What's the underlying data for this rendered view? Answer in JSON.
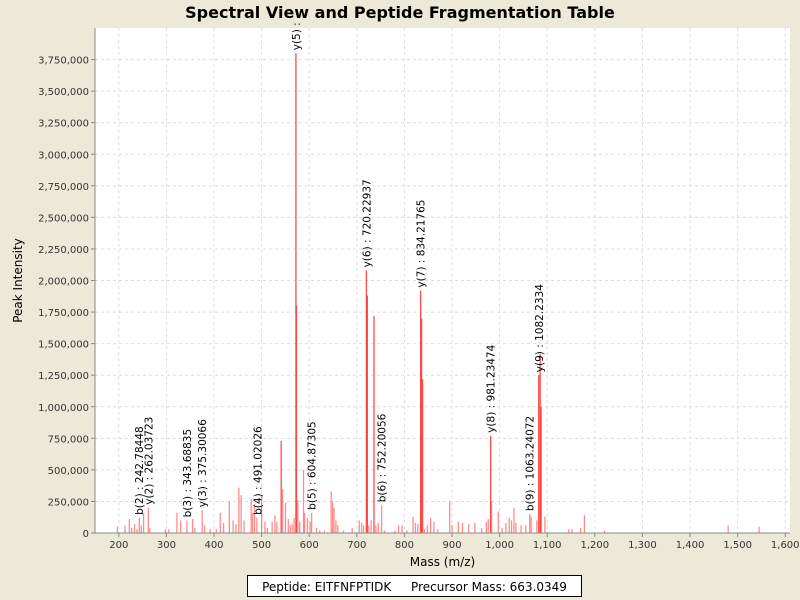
{
  "chart_data": {
    "type": "bar",
    "title": "Spectral View and Peptide Fragmentation Table",
    "xlabel": "Mass (m/z)",
    "ylabel": "Peak Intensity",
    "xlim": [
      150,
      1610
    ],
    "ylim": [
      0,
      4000000
    ],
    "grid": true,
    "bar_color": "#ff4040",
    "x_ticks": [
      200,
      300,
      400,
      500,
      600,
      700,
      800,
      900,
      1000,
      1100,
      1200,
      1300,
      1400,
      1500,
      1600
    ],
    "x_tick_labels": [
      "200",
      "300",
      "400",
      "500",
      "600",
      "700",
      "800",
      "900",
      "1,000",
      "1,100",
      "1,200",
      "1,300",
      "1,400",
      "1,500",
      "1,600"
    ],
    "y_ticks": [
      0,
      250000,
      500000,
      750000,
      1000000,
      1250000,
      1500000,
      1750000,
      2000000,
      2250000,
      2500000,
      2750000,
      3000000,
      3250000,
      3500000,
      3750000
    ],
    "y_tick_labels": [
      "0",
      "250,000",
      "500,000",
      "750,000",
      "1,000,000",
      "1,250,000",
      "1,500,000",
      "1,750,000",
      "2,000,000",
      "2,250,000",
      "2,500,000",
      "2,750,000",
      "3,000,000",
      "3,250,000",
      "3,500,000",
      "3,750,000"
    ],
    "peaks": [
      [
        197,
        50000
      ],
      [
        213,
        60000
      ],
      [
        222,
        110000
      ],
      [
        227,
        40000
      ],
      [
        233,
        70000
      ],
      [
        238,
        30000
      ],
      [
        243,
        120000
      ],
      [
        247,
        60000
      ],
      [
        252,
        160000
      ],
      [
        262,
        200000
      ],
      [
        265,
        40000
      ],
      [
        298,
        30000
      ],
      [
        305,
        30000
      ],
      [
        322,
        160000
      ],
      [
        330,
        100000
      ],
      [
        343,
        100000
      ],
      [
        355,
        110000
      ],
      [
        360,
        40000
      ],
      [
        375,
        180000
      ],
      [
        380,
        60000
      ],
      [
        392,
        30000
      ],
      [
        405,
        30000
      ],
      [
        413,
        160000
      ],
      [
        420,
        80000
      ],
      [
        432,
        250000
      ],
      [
        440,
        100000
      ],
      [
        446,
        70000
      ],
      [
        452,
        360000
      ],
      [
        457,
        300000
      ],
      [
        463,
        100000
      ],
      [
        478,
        270000
      ],
      [
        481,
        160000
      ],
      [
        485,
        230000
      ],
      [
        490,
        120000
      ],
      [
        500,
        300000
      ],
      [
        507,
        90000
      ],
      [
        512,
        40000
      ],
      [
        522,
        90000
      ],
      [
        528,
        140000
      ],
      [
        532,
        90000
      ],
      [
        541,
        730000
      ],
      [
        544,
        350000
      ],
      [
        550,
        240000
      ],
      [
        556,
        110000
      ],
      [
        560,
        60000
      ],
      [
        564,
        70000
      ],
      [
        568,
        120000
      ],
      [
        572,
        3800000
      ],
      [
        573,
        1800000
      ],
      [
        576,
        260000
      ],
      [
        580,
        90000
      ],
      [
        588,
        500000
      ],
      [
        590,
        160000
      ],
      [
        596,
        120000
      ],
      [
        602,
        90000
      ],
      [
        605,
        160000
      ],
      [
        615,
        40000
      ],
      [
        622,
        20000
      ],
      [
        632,
        20000
      ],
      [
        646,
        330000
      ],
      [
        649,
        250000
      ],
      [
        652,
        200000
      ],
      [
        656,
        100000
      ],
      [
        660,
        60000
      ],
      [
        672,
        20000
      ],
      [
        690,
        40000
      ],
      [
        705,
        100000
      ],
      [
        710,
        80000
      ],
      [
        714,
        60000
      ],
      [
        720,
        2080000
      ],
      [
        722,
        1880000
      ],
      [
        725,
        60000
      ],
      [
        730,
        100000
      ],
      [
        736,
        1720000
      ],
      [
        740,
        60000
      ],
      [
        745,
        80000
      ],
      [
        752,
        220000
      ],
      [
        758,
        20000
      ],
      [
        780,
        20000
      ],
      [
        788,
        60000
      ],
      [
        795,
        60000
      ],
      [
        805,
        20000
      ],
      [
        818,
        130000
      ],
      [
        823,
        80000
      ],
      [
        828,
        70000
      ],
      [
        834,
        1920000
      ],
      [
        836,
        1700000
      ],
      [
        838,
        1220000
      ],
      [
        842,
        30000
      ],
      [
        848,
        60000
      ],
      [
        855,
        120000
      ],
      [
        862,
        90000
      ],
      [
        870,
        30000
      ],
      [
        895,
        250000
      ],
      [
        900,
        60000
      ],
      [
        913,
        90000
      ],
      [
        922,
        80000
      ],
      [
        935,
        70000
      ],
      [
        948,
        80000
      ],
      [
        962,
        40000
      ],
      [
        972,
        90000
      ],
      [
        976,
        110000
      ],
      [
        981,
        770000
      ],
      [
        983,
        250000
      ],
      [
        997,
        170000
      ],
      [
        1005,
        40000
      ],
      [
        1013,
        80000
      ],
      [
        1020,
        120000
      ],
      [
        1025,
        100000
      ],
      [
        1030,
        200000
      ],
      [
        1034,
        80000
      ],
      [
        1045,
        60000
      ],
      [
        1055,
        60000
      ],
      [
        1063,
        150000
      ],
      [
        1066,
        130000
      ],
      [
        1078,
        100000
      ],
      [
        1082,
        1250000
      ],
      [
        1085,
        1420000
      ],
      [
        1087,
        1000000
      ],
      [
        1095,
        130000
      ],
      [
        1145,
        30000
      ],
      [
        1152,
        30000
      ],
      [
        1170,
        40000
      ],
      [
        1178,
        140000
      ],
      [
        1220,
        20000
      ],
      [
        1480,
        60000
      ],
      [
        1545,
        50000
      ]
    ],
    "annotations": [
      {
        "label": "b(2) : 242.78448",
        "mz": 242.78,
        "intensity": 120000
      },
      {
        "label": "y(2) : 262.03723",
        "mz": 262.04,
        "intensity": 200000
      },
      {
        "label": "b(3) : 343.68835",
        "mz": 343.69,
        "intensity": 100000
      },
      {
        "label": "y(3) : 375.30066",
        "mz": 375.3,
        "intensity": 180000
      },
      {
        "label": "b(4) : 491.02026",
        "mz": 491.02,
        "intensity": 120000
      },
      {
        "label": "y(5) : ",
        "mz": 572,
        "intensity": 3800000
      },
      {
        "label": "b(5) : 604.87305",
        "mz": 604.87,
        "intensity": 160000
      },
      {
        "label": "y(6) : 720.22937",
        "mz": 720.23,
        "intensity": 2080000
      },
      {
        "label": "b(6) : 752.20056",
        "mz": 752.2,
        "intensity": 220000
      },
      {
        "label": "y(7) : 834.21765",
        "mz": 834.22,
        "intensity": 1920000
      },
      {
        "label": "y(8) : 981.23474",
        "mz": 981.23,
        "intensity": 770000
      },
      {
        "label": "b(9) : 1063.24072",
        "mz": 1063.24,
        "intensity": 150000
      },
      {
        "label": "y(9) : 1082.2334",
        "mz": 1082.23,
        "intensity": 1250000
      }
    ]
  },
  "legend": {
    "peptide": "Peptide: EITFNFPTIDK",
    "precursor": "Precursor Mass: 663.0349"
  }
}
